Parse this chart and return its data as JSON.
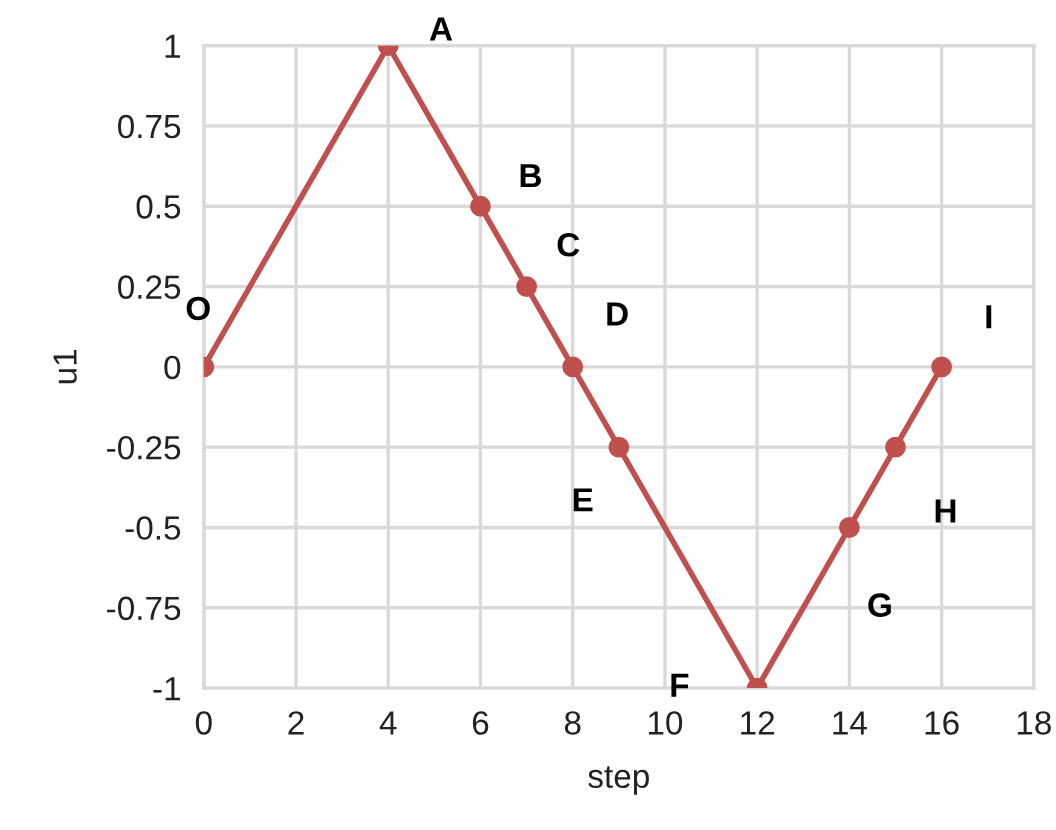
{
  "chart_data": {
    "type": "line",
    "xlabel": "step",
    "ylabel": "u1",
    "x": [
      0,
      4,
      6,
      7,
      8,
      9,
      12,
      14,
      15,
      16
    ],
    "series": [
      {
        "color": "#c0504d",
        "values": [
          0,
          1,
          0.5,
          0.25,
          0,
          -0.25,
          -1,
          -0.5,
          -0.25,
          0
        ]
      }
    ],
    "xlim": [
      0,
      18
    ],
    "xticks": [
      0,
      2,
      4,
      6,
      8,
      10,
      12,
      14,
      16,
      18
    ],
    "ylim": [
      -1,
      1
    ],
    "yticks": [
      -1,
      -0.75,
      -0.5,
      -0.25,
      0,
      0.25,
      0.5,
      0.75,
      1
    ],
    "grid": true,
    "marker": "circle",
    "line_style": "solid",
    "annotations": [
      {
        "text": "O",
        "x": 0,
        "y": 0
      },
      {
        "text": "A",
        "x": 4,
        "y": 1
      },
      {
        "text": "B",
        "x": 6,
        "y": 0.5
      },
      {
        "text": "C",
        "x": 7,
        "y": 0.25
      },
      {
        "text": "D",
        "x": 8,
        "y": 0
      },
      {
        "text": "E",
        "x": 9,
        "y": -0.25
      },
      {
        "text": "F",
        "x": 12,
        "y": -1
      },
      {
        "text": "G",
        "x": 14,
        "y": -0.5
      },
      {
        "text": "H",
        "x": 15,
        "y": -0.25
      },
      {
        "text": "I",
        "x": 16,
        "y": 0
      }
    ]
  }
}
